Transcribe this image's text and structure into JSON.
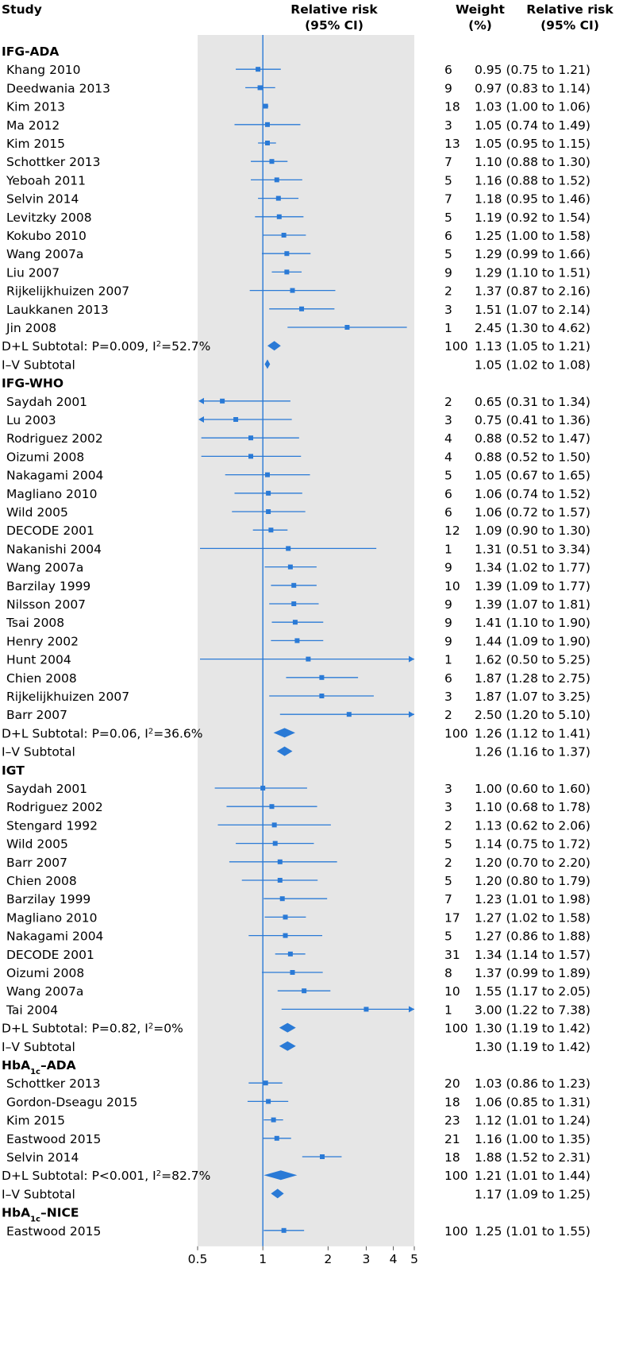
{
  "chart_data": {
    "type": "forest",
    "headers": {
      "study": "Study",
      "rr_line1": "Relative risk",
      "rr_line2": "(95% CI)",
      "weight_line1": "Weight",
      "weight_line2": "(%)",
      "ci_line1": "Relative risk",
      "ci_line2": "(95% CI)"
    },
    "x_scale": "log",
    "xlim": [
      0.5,
      5
    ],
    "null_value": 1,
    "ticks": [
      {
        "value": 0.5,
        "label": "0.5"
      },
      {
        "value": 1,
        "label": "1"
      },
      {
        "value": 2,
        "label": "2"
      },
      {
        "value": 3,
        "label": "3"
      },
      {
        "value": 4,
        "label": "4"
      },
      {
        "value": 5,
        "label": "5"
      }
    ],
    "colors": {
      "marker": "#2a7ad6",
      "panel": "#e6e6e6",
      "text": "#1a1a1a"
    },
    "rows": [
      {
        "kind": "group",
        "label": "IFG-ADA"
      },
      {
        "kind": "study",
        "label": "Khang 2010",
        "rr": 0.95,
        "lo": 0.75,
        "hi": 1.21,
        "weight": "6",
        "ci_text": "0.95 (0.75 to 1.21)"
      },
      {
        "kind": "study",
        "label": "Deedwania 2013",
        "rr": 0.97,
        "lo": 0.83,
        "hi": 1.14,
        "weight": "9",
        "ci_text": "0.97 (0.83 to 1.14)"
      },
      {
        "kind": "study",
        "label": "Kim 2013",
        "rr": 1.03,
        "lo": 1.0,
        "hi": 1.06,
        "weight": "18",
        "ci_text": "1.03 (1.00 to 1.06)"
      },
      {
        "kind": "study",
        "label": "Ma 2012",
        "rr": 1.05,
        "lo": 0.74,
        "hi": 1.49,
        "weight": "3",
        "ci_text": "1.05 (0.74 to 1.49)"
      },
      {
        "kind": "study",
        "label": "Kim 2015",
        "rr": 1.05,
        "lo": 0.95,
        "hi": 1.15,
        "weight": "13",
        "ci_text": "1.05 (0.95 to 1.15)"
      },
      {
        "kind": "study",
        "label": "Schottker 2013",
        "rr": 1.1,
        "lo": 0.88,
        "hi": 1.3,
        "weight": "7",
        "ci_text": "1.10 (0.88 to 1.30)"
      },
      {
        "kind": "study",
        "label": "Yeboah 2011",
        "rr": 1.16,
        "lo": 0.88,
        "hi": 1.52,
        "weight": "5",
        "ci_text": "1.16 (0.88 to 1.52)"
      },
      {
        "kind": "study",
        "label": "Selvin 2014",
        "rr": 1.18,
        "lo": 0.95,
        "hi": 1.46,
        "weight": "7",
        "ci_text": "1.18 (0.95 to 1.46)"
      },
      {
        "kind": "study",
        "label": "Levitzky 2008",
        "rr": 1.19,
        "lo": 0.92,
        "hi": 1.54,
        "weight": "5",
        "ci_text": "1.19 (0.92 to 1.54)"
      },
      {
        "kind": "study",
        "label": "Kokubo 2010",
        "rr": 1.25,
        "lo": 1.0,
        "hi": 1.58,
        "weight": "6",
        "ci_text": "1.25 (1.00 to 1.58)"
      },
      {
        "kind": "study",
        "label": "Wang 2007a",
        "rr": 1.29,
        "lo": 0.99,
        "hi": 1.66,
        "weight": "5",
        "ci_text": "1.29 (0.99 to 1.66)"
      },
      {
        "kind": "study",
        "label": "Liu 2007",
        "rr": 1.29,
        "lo": 1.1,
        "hi": 1.51,
        "weight": "9",
        "ci_text": "1.29 (1.10 to 1.51)"
      },
      {
        "kind": "study",
        "label": "Rijkelijkhuizen 2007",
        "rr": 1.37,
        "lo": 0.87,
        "hi": 2.16,
        "weight": "2",
        "ci_text": "1.37 (0.87 to 2.16)"
      },
      {
        "kind": "study",
        "label": "Laukkanen 2013",
        "rr": 1.51,
        "lo": 1.07,
        "hi": 2.14,
        "weight": "3",
        "ci_text": "1.51 (1.07 to 2.14)"
      },
      {
        "kind": "study",
        "label": "Jin 2008",
        "rr": 2.45,
        "lo": 1.3,
        "hi": 4.62,
        "weight": "1",
        "ci_text": "2.45 (1.30 to 4.62)"
      },
      {
        "kind": "subtotal",
        "label_main": "D+L Subtotal: P=0.009, I",
        "label_sup": "2",
        "label_tail": "=52.7%",
        "rr": 1.13,
        "lo": 1.05,
        "hi": 1.21,
        "weight": "100",
        "ci_text": "1.13 (1.05 to 1.21)"
      },
      {
        "kind": "subtotal",
        "label_main": "I–V Subtotal",
        "label_sup": "",
        "label_tail": "",
        "rr": 1.05,
        "lo": 1.02,
        "hi": 1.08,
        "weight": "",
        "ci_text": "1.05 (1.02 to 1.08)"
      },
      {
        "kind": "group",
        "label": "IFG-WHO"
      },
      {
        "kind": "study",
        "label": "Saydah 2001",
        "rr": 0.65,
        "lo": 0.31,
        "hi": 1.34,
        "weight": "2",
        "ci_text": "0.65 (0.31 to 1.34)"
      },
      {
        "kind": "study",
        "label": "Lu 2003",
        "rr": 0.75,
        "lo": 0.41,
        "hi": 1.36,
        "weight": "3",
        "ci_text": "0.75 (0.41 to 1.36)"
      },
      {
        "kind": "study",
        "label": "Rodriguez 2002",
        "rr": 0.88,
        "lo": 0.52,
        "hi": 1.47,
        "weight": "4",
        "ci_text": "0.88 (0.52 to 1.47)"
      },
      {
        "kind": "study",
        "label": "Oizumi 2008",
        "rr": 0.88,
        "lo": 0.52,
        "hi": 1.5,
        "weight": "4",
        "ci_text": "0.88 (0.52 to 1.50)"
      },
      {
        "kind": "study",
        "label": "Nakagami 2004",
        "rr": 1.05,
        "lo": 0.67,
        "hi": 1.65,
        "weight": "5",
        "ci_text": "1.05 (0.67 to 1.65)"
      },
      {
        "kind": "study",
        "label": "Magliano 2010",
        "rr": 1.06,
        "lo": 0.74,
        "hi": 1.52,
        "weight": "6",
        "ci_text": "1.06 (0.74 to 1.52)"
      },
      {
        "kind": "study",
        "label": "Wild 2005",
        "rr": 1.06,
        "lo": 0.72,
        "hi": 1.57,
        "weight": "6",
        "ci_text": "1.06 (0.72 to 1.57)"
      },
      {
        "kind": "study",
        "label": "DECODE 2001",
        "rr": 1.09,
        "lo": 0.9,
        "hi": 1.3,
        "weight": "12",
        "ci_text": "1.09 (0.90 to 1.30)"
      },
      {
        "kind": "study",
        "label": "Nakanishi 2004",
        "rr": 1.31,
        "lo": 0.51,
        "hi": 3.34,
        "weight": "1",
        "ci_text": "1.31 (0.51 to 3.34)"
      },
      {
        "kind": "study",
        "label": "Wang 2007a",
        "rr": 1.34,
        "lo": 1.02,
        "hi": 1.77,
        "weight": "9",
        "ci_text": "1.34 (1.02 to 1.77)"
      },
      {
        "kind": "study",
        "label": "Barzilay 1999",
        "rr": 1.39,
        "lo": 1.09,
        "hi": 1.77,
        "weight": "10",
        "ci_text": "1.39 (1.09 to 1.77)"
      },
      {
        "kind": "study",
        "label": "Nilsson 2007",
        "rr": 1.39,
        "lo": 1.07,
        "hi": 1.81,
        "weight": "9",
        "ci_text": "1.39 (1.07 to 1.81)"
      },
      {
        "kind": "study",
        "label": "Tsai 2008",
        "rr": 1.41,
        "lo": 1.1,
        "hi": 1.9,
        "weight": "9",
        "ci_text": "1.41 (1.10 to 1.90)"
      },
      {
        "kind": "study",
        "label": "Henry 2002",
        "rr": 1.44,
        "lo": 1.09,
        "hi": 1.9,
        "weight": "9",
        "ci_text": "1.44 (1.09 to 1.90)"
      },
      {
        "kind": "study",
        "label": "Hunt 2004",
        "rr": 1.62,
        "lo": 0.5,
        "hi": 5.25,
        "weight": "1",
        "ci_text": "1.62 (0.50 to 5.25)"
      },
      {
        "kind": "study",
        "label": "Chien 2008",
        "rr": 1.87,
        "lo": 1.28,
        "hi": 2.75,
        "weight": "6",
        "ci_text": "1.87 (1.28 to 2.75)"
      },
      {
        "kind": "study",
        "label": "Rijkelijkhuizen 2007",
        "rr": 1.87,
        "lo": 1.07,
        "hi": 3.25,
        "weight": "3",
        "ci_text": "1.87 (1.07 to 3.25)"
      },
      {
        "kind": "study",
        "label": "Barr 2007",
        "rr": 2.5,
        "lo": 1.2,
        "hi": 5.1,
        "weight": "2",
        "ci_text": "2.50 (1.20 to 5.10)"
      },
      {
        "kind": "subtotal",
        "label_main": "D+L Subtotal: P=0.06, I",
        "label_sup": "2",
        "label_tail": "=36.6%",
        "rr": 1.26,
        "lo": 1.12,
        "hi": 1.41,
        "weight": "100",
        "ci_text": "1.26 (1.12 to 1.41)"
      },
      {
        "kind": "subtotal",
        "label_main": "I–V Subtotal",
        "label_sup": "",
        "label_tail": "",
        "rr": 1.26,
        "lo": 1.16,
        "hi": 1.37,
        "weight": "",
        "ci_text": "1.26 (1.16 to 1.37)"
      },
      {
        "kind": "group",
        "label": "IGT"
      },
      {
        "kind": "study",
        "label": "Saydah 2001",
        "rr": 1.0,
        "lo": 0.6,
        "hi": 1.6,
        "weight": "3",
        "ci_text": "1.00 (0.60 to 1.60)"
      },
      {
        "kind": "study",
        "label": "Rodriguez 2002",
        "rr": 1.1,
        "lo": 0.68,
        "hi": 1.78,
        "weight": "3",
        "ci_text": "1.10 (0.68 to 1.78)"
      },
      {
        "kind": "study",
        "label": "Stengard 1992",
        "rr": 1.13,
        "lo": 0.62,
        "hi": 2.06,
        "weight": "2",
        "ci_text": "1.13 (0.62 to 2.06)"
      },
      {
        "kind": "study",
        "label": "Wild 2005",
        "rr": 1.14,
        "lo": 0.75,
        "hi": 1.72,
        "weight": "5",
        "ci_text": "1.14 (0.75 to 1.72)"
      },
      {
        "kind": "study",
        "label": "Barr 2007",
        "rr": 1.2,
        "lo": 0.7,
        "hi": 2.2,
        "weight": "2",
        "ci_text": "1.20 (0.70 to 2.20)"
      },
      {
        "kind": "study",
        "label": "Chien 2008",
        "rr": 1.2,
        "lo": 0.8,
        "hi": 1.79,
        "weight": "5",
        "ci_text": "1.20 (0.80 to 1.79)"
      },
      {
        "kind": "study",
        "label": "Barzilay 1999",
        "rr": 1.23,
        "lo": 1.01,
        "hi": 1.98,
        "weight": "7",
        "ci_text": "1.23 (1.01 to 1.98)"
      },
      {
        "kind": "study",
        "label": "Magliano 2010",
        "rr": 1.27,
        "lo": 1.02,
        "hi": 1.58,
        "weight": "17",
        "ci_text": "1.27 (1.02 to 1.58)"
      },
      {
        "kind": "study",
        "label": "Nakagami 2004",
        "rr": 1.27,
        "lo": 0.86,
        "hi": 1.88,
        "weight": "5",
        "ci_text": "1.27 (0.86 to 1.88)"
      },
      {
        "kind": "study",
        "label": "DECODE 2001",
        "rr": 1.34,
        "lo": 1.14,
        "hi": 1.57,
        "weight": "31",
        "ci_text": "1.34 (1.14 to 1.57)"
      },
      {
        "kind": "study",
        "label": "Oizumi 2008",
        "rr": 1.37,
        "lo": 0.99,
        "hi": 1.89,
        "weight": "8",
        "ci_text": "1.37 (0.99 to 1.89)"
      },
      {
        "kind": "study",
        "label": "Wang 2007a",
        "rr": 1.55,
        "lo": 1.17,
        "hi": 2.05,
        "weight": "10",
        "ci_text": "1.55 (1.17 to 2.05)"
      },
      {
        "kind": "study",
        "label": "Tai 2004",
        "rr": 3.0,
        "lo": 1.22,
        "hi": 7.38,
        "weight": "1",
        "ci_text": "3.00 (1.22 to 7.38)"
      },
      {
        "kind": "subtotal",
        "label_main": "D+L Subtotal: P=0.82, I",
        "label_sup": "2",
        "label_tail": "=0%",
        "rr": 1.3,
        "lo": 1.19,
        "hi": 1.42,
        "weight": "100",
        "ci_text": "1.30 (1.19 to 1.42)"
      },
      {
        "kind": "subtotal",
        "label_main": "I–V Subtotal",
        "label_sup": "",
        "label_tail": "",
        "rr": 1.3,
        "lo": 1.19,
        "hi": 1.42,
        "weight": "",
        "ci_text": "1.30 (1.19 to 1.42)"
      },
      {
        "kind": "group",
        "label": "HbA",
        "sub": "1c",
        "tail": "–ADA"
      },
      {
        "kind": "study",
        "label": "Schottker 2013",
        "rr": 1.03,
        "lo": 0.86,
        "hi": 1.23,
        "weight": "20",
        "ci_text": "1.03 (0.86 to 1.23)"
      },
      {
        "kind": "study",
        "label": "Gordon-Dseagu 2015",
        "rr": 1.06,
        "lo": 0.85,
        "hi": 1.31,
        "weight": "18",
        "ci_text": "1.06 (0.85 to 1.31)"
      },
      {
        "kind": "study",
        "label": "Kim 2015",
        "rr": 1.12,
        "lo": 1.01,
        "hi": 1.24,
        "weight": "23",
        "ci_text": "1.12 (1.01 to 1.24)"
      },
      {
        "kind": "study",
        "label": "Eastwood 2015",
        "rr": 1.16,
        "lo": 1.0,
        "hi": 1.35,
        "weight": "21",
        "ci_text": "1.16 (1.00 to 1.35)"
      },
      {
        "kind": "study",
        "label": "Selvin 2014",
        "rr": 1.88,
        "lo": 1.52,
        "hi": 2.31,
        "weight": "18",
        "ci_text": "1.88 (1.52 to 2.31)"
      },
      {
        "kind": "subtotal",
        "label_main": "D+L Subtotal: P<0.001, I",
        "label_sup": "2",
        "label_tail": "=82.7%",
        "rr": 1.21,
        "lo": 1.01,
        "hi": 1.44,
        "weight": "100",
        "ci_text": "1.21 (1.01 to 1.44)"
      },
      {
        "kind": "subtotal",
        "label_main": "I–V Subtotal",
        "label_sup": "",
        "label_tail": "",
        "rr": 1.17,
        "lo": 1.09,
        "hi": 1.25,
        "weight": "",
        "ci_text": "1.17 (1.09 to 1.25)"
      },
      {
        "kind": "group",
        "label": "HbA",
        "sub": "1c",
        "tail": "–NICE"
      },
      {
        "kind": "study",
        "label": "Eastwood 2015",
        "rr": 1.25,
        "lo": 1.01,
        "hi": 1.55,
        "weight": "100",
        "ci_text": "1.25 (1.01 to 1.55)"
      }
    ]
  }
}
